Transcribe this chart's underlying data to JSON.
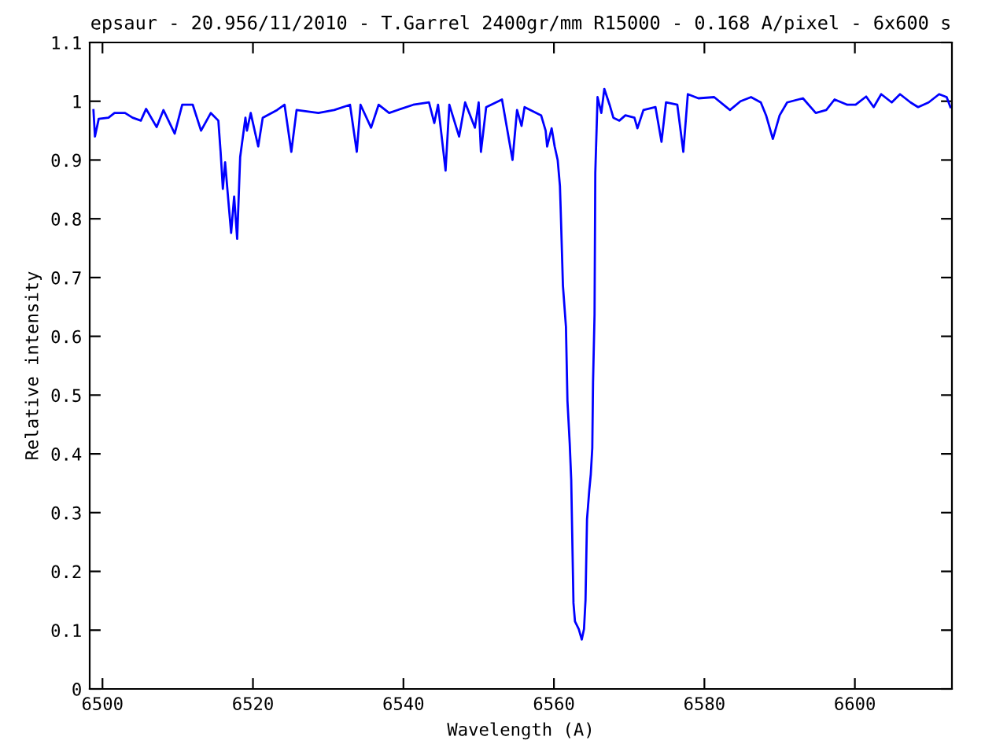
{
  "chart_data": {
    "type": "line",
    "title": "epsaur - 20.956/11/2010 - T.Garrel 2400gr/mm R15000 - 0.168 A/pixel - 6x600 s",
    "xlabel": "Wavelength (A)",
    "ylabel": "Relative intensity",
    "x": [
      6498.8,
      6499.0,
      6499.5,
      6500.8,
      6501.6,
      6503.0,
      6504.0,
      6505.1,
      6505.8,
      6507.2,
      6508.1,
      6509.6,
      6510.6,
      6512.0,
      6513.1,
      6514.4,
      6515.4,
      6515.7,
      6516.0,
      6516.3,
      6516.8,
      6517.1,
      6517.5,
      6517.9,
      6518.3,
      6519.0,
      6519.2,
      6519.7,
      6520.7,
      6521.3,
      6523.2,
      6524.2,
      6525.1,
      6525.8,
      6528.7,
      6530.8,
      6532.9,
      6533.8,
      6534.3,
      6535.7,
      6536.7,
      6538.1,
      6539.2,
      6541.3,
      6543.4,
      6544.1,
      6544.6,
      6545.6,
      6546.1,
      6547.4,
      6548.2,
      6549.5,
      6550.0,
      6550.3,
      6551.0,
      6553.1,
      6554.5,
      6555.1,
      6555.7,
      6556.1,
      6558.3,
      6558.9,
      6559.1,
      6559.7,
      6560.1,
      6560.5,
      6560.8,
      6560.9,
      6561.2,
      6561.6,
      6561.8,
      6562.1,
      6562.3,
      6562.4,
      6562.6,
      6562.8,
      6563.3,
      6563.7,
      6564.0,
      6564.2,
      6564.4,
      6564.7,
      6564.9,
      6565.1,
      6565.2,
      6565.4,
      6565.5,
      6565.8,
      6566.3,
      6566.7,
      6567.4,
      6567.9,
      6568.7,
      6569.5,
      6570.7,
      6571.1,
      6571.9,
      6573.5,
      6574.3,
      6574.9,
      6576.4,
      6577.2,
      6577.8,
      6579.2,
      6581.3,
      6583.4,
      6584.8,
      6586.2,
      6587.5,
      6588.2,
      6589.1,
      6590.0,
      6591.0,
      6593.1,
      6594.8,
      6596.2,
      6597.3,
      6599.0,
      6600.1,
      6601.5,
      6602.5,
      6603.5,
      6604.9,
      6606.0,
      6607.4,
      6608.4,
      6609.8,
      6611.2,
      6612.2,
      6612.7
    ],
    "series": [
      {
        "color": "#0000ff",
        "values": [
          0.985,
          0.94,
          0.97,
          0.972,
          0.98,
          0.98,
          0.972,
          0.967,
          0.987,
          0.956,
          0.985,
          0.945,
          0.994,
          0.994,
          0.95,
          0.98,
          0.967,
          0.914,
          0.851,
          0.896,
          0.82,
          0.776,
          0.838,
          0.766,
          0.905,
          0.972,
          0.95,
          0.98,
          0.923,
          0.972,
          0.985,
          0.994,
          0.914,
          0.985,
          0.98,
          0.985,
          0.994,
          0.914,
          0.994,
          0.955,
          0.994,
          0.98,
          0.985,
          0.994,
          0.998,
          0.963,
          0.994,
          0.882,
          0.994,
          0.94,
          0.998,
          0.955,
          0.998,
          0.914,
          0.99,
          1.003,
          0.9,
          0.985,
          0.958,
          0.99,
          0.976,
          0.95,
          0.923,
          0.954,
          0.923,
          0.9,
          0.856,
          0.816,
          0.686,
          0.616,
          0.49,
          0.418,
          0.356,
          0.285,
          0.146,
          0.115,
          0.102,
          0.084,
          0.102,
          0.151,
          0.289,
          0.338,
          0.365,
          0.41,
          0.521,
          0.637,
          0.878,
          1.007,
          0.98,
          1.021,
          0.994,
          0.972,
          0.967,
          0.976,
          0.972,
          0.954,
          0.985,
          0.99,
          0.931,
          0.998,
          0.994,
          0.914,
          1.012,
          1.005,
          1.007,
          0.985,
          1.0,
          1.007,
          0.998,
          0.976,
          0.936,
          0.976,
          0.998,
          1.005,
          0.98,
          0.985,
          1.003,
          0.994,
          0.994,
          1.008,
          0.99,
          1.012,
          0.998,
          1.012,
          0.998,
          0.99,
          0.998,
          1.012,
          1.007,
          0.99
        ]
      }
    ],
    "xlim": [
      6498.3,
      6612.9
    ],
    "ylim": [
      0,
      1.1
    ],
    "xticks": [
      6500,
      6520,
      6540,
      6560,
      6580,
      6600
    ],
    "yticks": [
      0,
      0.1,
      0.2,
      0.3,
      0.4,
      0.5,
      0.6,
      0.7,
      0.8,
      0.9,
      1,
      1.1
    ],
    "grid": false,
    "legend": false,
    "marker": "none",
    "line_style": "solid"
  }
}
